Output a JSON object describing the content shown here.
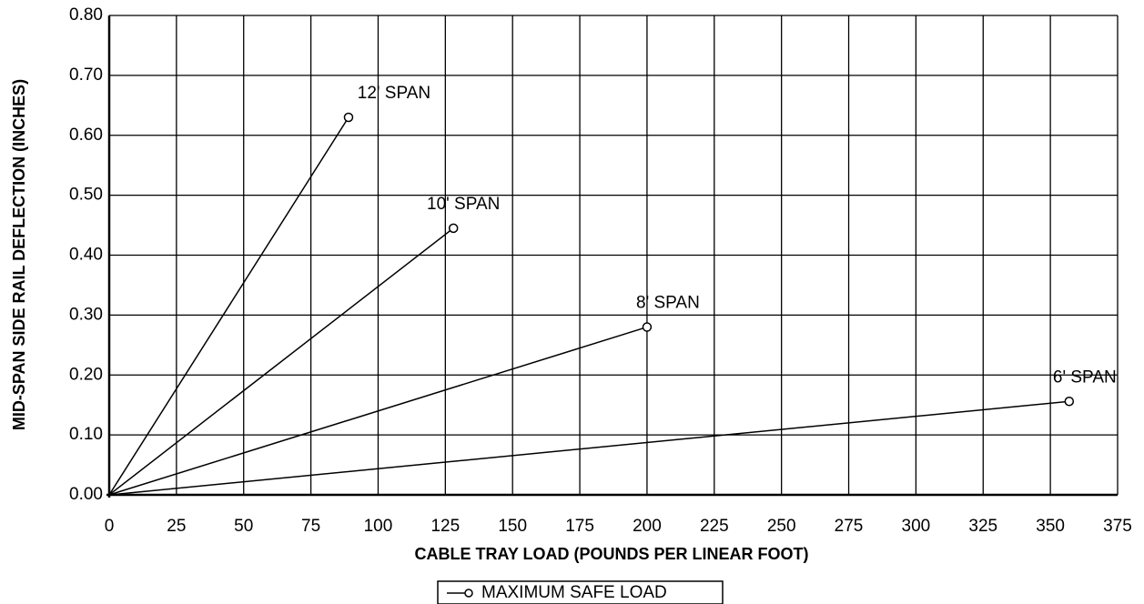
{
  "chart_data": {
    "type": "line",
    "xlabel": "CABLE TRAY LOAD (POUNDS PER LINEAR FOOT)",
    "ylabel": "MID-SPAN SIDE RAIL DEFLECTION (INCHES)",
    "legend_label": "MAXIMUM SAFE LOAD",
    "xlim": [
      0,
      375
    ],
    "xticks": [
      0,
      25,
      50,
      75,
      100,
      125,
      150,
      175,
      200,
      225,
      250,
      275,
      300,
      325,
      350,
      375
    ],
    "ylim": [
      0,
      0.8
    ],
    "yticks": [
      {
        "value": 0,
        "label": "0.00"
      },
      {
        "value": 0.1,
        "label": "0.10"
      },
      {
        "value": 0.2,
        "label": "0.20"
      },
      {
        "value": 0.3,
        "label": "0.30"
      },
      {
        "value": 0.4,
        "label": "0.40"
      },
      {
        "value": 0.5,
        "label": "0.50"
      },
      {
        "value": 0.6,
        "label": "0.60"
      },
      {
        "value": 0.7,
        "label": "0.70"
      },
      {
        "value": 0.8,
        "label": "0.80"
      }
    ],
    "grid": true,
    "series": [
      {
        "name": "12' SPAN",
        "color": "#000000",
        "x": [
          0,
          89
        ],
        "values": [
          0,
          0.63
        ]
      },
      {
        "name": "10' SPAN",
        "color": "#000000",
        "x": [
          0,
          128
        ],
        "values": [
          0,
          0.445
        ]
      },
      {
        "name": "8' SPAN",
        "color": "#000000",
        "x": [
          0,
          200
        ],
        "values": [
          0,
          0.28
        ]
      },
      {
        "name": "6' SPAN",
        "color": "#000000",
        "x": [
          0,
          357
        ],
        "values": [
          0,
          0.156
        ]
      }
    ]
  }
}
